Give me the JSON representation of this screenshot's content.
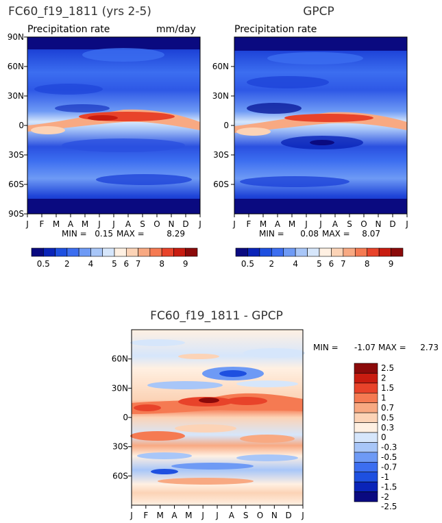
{
  "colors": {
    "scale": [
      "#0a0a80",
      "#0a24b8",
      "#1e50e0",
      "#3c6ef0",
      "#6e9af5",
      "#a8c6f8",
      "#d6e6fb",
      "#fff0e2",
      "#fcd3b6",
      "#f8a982",
      "#f57a52",
      "#e8432a",
      "#c81c10",
      "#8b0a0a"
    ],
    "diff": [
      "#0a0a80",
      "#0a24b8",
      "#1e50e0",
      "#3c6ef0",
      "#6e9af5",
      "#a8c6f8",
      "#d6e6fb",
      "#fff0e2",
      "#fcd3b6",
      "#f8a982",
      "#f57a52",
      "#e8432a",
      "#c81c10",
      "#8b0a0a"
    ]
  },
  "chart_data": [
    {
      "type": "heatmap",
      "title": "FC60_f19_1811 (yrs 2-5)",
      "subtitle": "Precipitation rate",
      "units": "mm/day",
      "x_ticks": [
        "J",
        "F",
        "M",
        "A",
        "M",
        "J",
        "J",
        "A",
        "S",
        "O",
        "N",
        "D",
        "J"
      ],
      "y_ticks": [
        "90N",
        "60N",
        "30N",
        "0",
        "30S",
        "60S",
        "90S"
      ],
      "min_label": "MIN =",
      "min": "0.15",
      "max_label": "MAX =",
      "max": "8.29",
      "colorbar_labels": [
        "0.5",
        "2",
        "4",
        "5",
        "6",
        "7",
        "8",
        "9"
      ]
    },
    {
      "type": "heatmap",
      "title": "GPCP",
      "subtitle": "Precipitation rate",
      "y_ticks": [
        "60N",
        "30N",
        "0",
        "30S",
        "60S"
      ],
      "x_ticks": [
        "J",
        "F",
        "M",
        "A",
        "M",
        "J",
        "J",
        "A",
        "S",
        "O",
        "N",
        "D",
        "J"
      ],
      "min_label": "MIN =",
      "min": "0.08",
      "max_label": "MAX =",
      "max": "8.07",
      "colorbar_labels": [
        "0.5",
        "2",
        "4",
        "5",
        "6",
        "7",
        "8",
        "9"
      ]
    },
    {
      "type": "heatmap",
      "title": "FC60_f19_1811 - GPCP",
      "y_ticks": [
        "60N",
        "30N",
        "0",
        "30S",
        "60S"
      ],
      "x_ticks": [
        "J",
        "F",
        "M",
        "A",
        "M",
        "J",
        "J",
        "A",
        "S",
        "O",
        "N",
        "D",
        "J"
      ],
      "min_label": "MIN =",
      "min": "-1.07",
      "max_label": "MAX =",
      "max": "2.73",
      "colorbar_labels": [
        "2.5",
        "2",
        "1.5",
        "1",
        "0.7",
        "0.5",
        "0.3",
        "0",
        "-0.3",
        "-0.5",
        "-0.7",
        "-1",
        "-1.5",
        "-2",
        "-2.5"
      ]
    }
  ]
}
